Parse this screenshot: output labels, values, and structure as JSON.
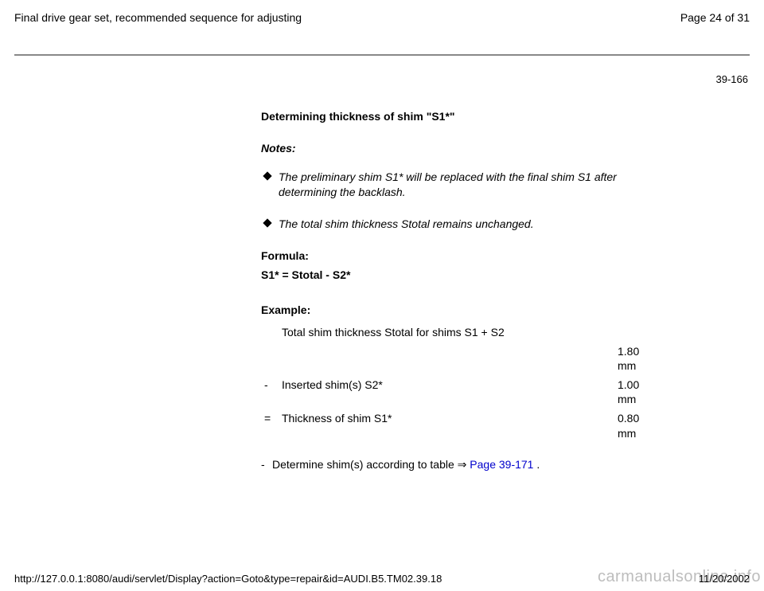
{
  "header": {
    "title": "Final drive gear set, recommended sequence for adjusting",
    "page_indicator": "Page 24 of 31"
  },
  "page_code": "39-166",
  "content": {
    "heading": "Determining thickness of shim \"S1*\"",
    "notes_label": "Notes:",
    "notes": [
      "The preliminary shim S1* will be replaced with the final shim S1 after determining the backlash.",
      "The total shim thickness Stotal remains unchanged."
    ],
    "formula_label": "Formula:",
    "formula": "S1* = Stotal - S2*",
    "example_label": "Example:",
    "example_rows": [
      {
        "sym": "",
        "desc": "Total shim thickness Stotal for shims S1 + S2",
        "val": ""
      },
      {
        "sym": "",
        "desc": "",
        "val": "1.80 mm"
      },
      {
        "sym": "-",
        "desc": "Inserted shim(s) S2*",
        "val": "1.00 mm"
      },
      {
        "sym": "=",
        "desc": "Thickness of shim S1*",
        "val": "0.80 mm"
      }
    ],
    "determine": {
      "prefix": "Determine shim(s) according to table  ",
      "arrow": "⇒",
      "link_text": "Page 39-171",
      "suffix": " ."
    }
  },
  "footer": {
    "url": "http://127.0.0.1:8080/audi/servlet/Display?action=Goto&type=repair&id=AUDI.B5.TM02.39.18",
    "date": "11/20/2002"
  },
  "watermark": "carmanualsonline.info",
  "colors": {
    "link": "#0000cc",
    "rule": "#888888",
    "watermark": "#bdbdbd"
  }
}
